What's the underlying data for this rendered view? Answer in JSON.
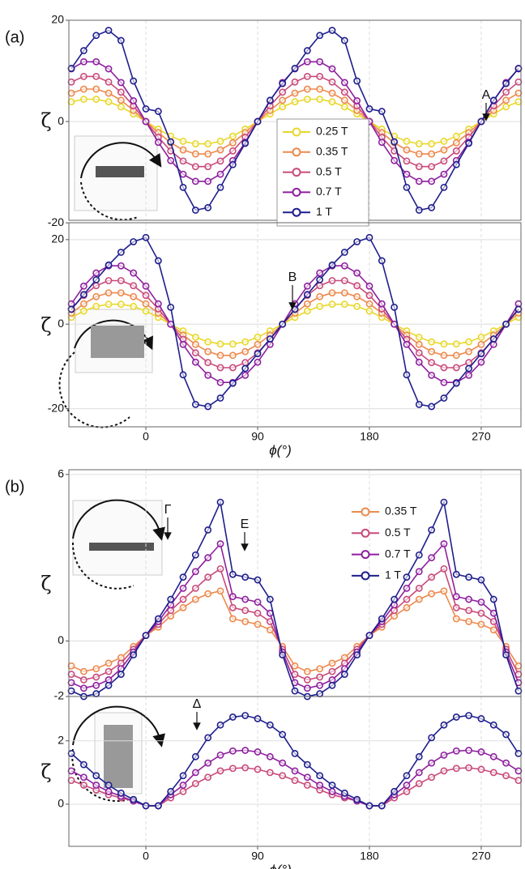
{
  "chart_data": [
    {
      "type": "line",
      "panel": "(a)",
      "y_label": "ζ",
      "annotations": [
        "A"
      ],
      "legend": "center",
      "grid": true,
      "xlim": [
        -62,
        302
      ],
      "ylim": [
        -19.5,
        20
      ],
      "xticks": [
        0,
        90,
        180,
        270
      ],
      "yticks": [
        -20,
        0,
        20
      ],
      "x": [
        -60,
        -50,
        -40,
        -30,
        -20,
        -10,
        0,
        10,
        20,
        30,
        40,
        50,
        60,
        70,
        80,
        90,
        100,
        110,
        120,
        130,
        140,
        150,
        160,
        170,
        180,
        190,
        200,
        210,
        220,
        230,
        240,
        250,
        260,
        270,
        280,
        290,
        300
      ],
      "series": [
        {
          "name": "0.25 T",
          "color": "#e8d82c",
          "values": [
            3.9,
            4.4,
            4.4,
            3.9,
            2.9,
            1.5,
            0,
            -1.5,
            -2.9,
            -3.9,
            -4.4,
            -4.4,
            -3.9,
            -2.9,
            -1.5,
            0,
            1.5,
            2.9,
            3.9,
            4.4,
            4.4,
            3.9,
            2.9,
            1.5,
            0,
            -1.5,
            -2.9,
            -3.9,
            -4.4,
            -4.4,
            -3.9,
            -2.9,
            -1.5,
            0,
            1.5,
            2.9,
            3.9
          ]
        },
        {
          "name": "0.35 T",
          "color": "#ec8a4e",
          "values": [
            5.6,
            6.4,
            6.4,
            5.6,
            4.2,
            2.2,
            0,
            -2.2,
            -4.2,
            -5.6,
            -6.4,
            -6.4,
            -5.6,
            -4.2,
            -2.2,
            0,
            2.2,
            4.2,
            5.6,
            6.4,
            6.4,
            5.6,
            4.2,
            2.2,
            0,
            -2.2,
            -4.2,
            -5.6,
            -6.4,
            -6.4,
            -5.6,
            -4.2,
            -2.2,
            0,
            2.2,
            4.2,
            5.6
          ]
        },
        {
          "name": "0.5 T",
          "color": "#c84a7a",
          "values": [
            7.8,
            8.9,
            8.9,
            7.8,
            5.8,
            3.1,
            0,
            -3.1,
            -5.8,
            -7.8,
            -8.9,
            -8.9,
            -7.8,
            -5.8,
            -3.1,
            0,
            3.1,
            5.8,
            7.8,
            8.9,
            8.9,
            7.8,
            5.8,
            3.1,
            0,
            -3.1,
            -5.8,
            -7.8,
            -8.9,
            -8.9,
            -7.8,
            -5.8,
            -3.1,
            0,
            3.1,
            5.8,
            7.8
          ]
        },
        {
          "name": "0.7 T",
          "color": "#8e1f9e",
          "values": [
            10.4,
            11.8,
            11.8,
            10.4,
            7.7,
            4.1,
            0,
            -4.1,
            -7.7,
            -10.4,
            -11.8,
            -11.8,
            -10.4,
            -7.7,
            -4.1,
            0,
            4.1,
            7.7,
            10.4,
            11.8,
            11.8,
            10.4,
            7.7,
            4.1,
            0,
            -4.1,
            -7.7,
            -10.4,
            -11.8,
            -11.8,
            -10.4,
            -7.7,
            -4.1,
            0,
            4.1,
            7.7,
            10.4
          ]
        },
        {
          "name": "1 T",
          "color": "#1e1e8c",
          "values": [
            10.5,
            14,
            17,
            18,
            16,
            8,
            2.5,
            2,
            -4,
            -13,
            -17.5,
            -17,
            -13,
            -8.5,
            -4.3,
            0,
            4.2,
            7.5,
            10.5,
            14,
            17,
            18,
            16,
            8,
            2.5,
            2,
            -4,
            -13,
            -17.5,
            -17,
            -13,
            -8.5,
            -4.3,
            0,
            4.2,
            7.5,
            10.5
          ]
        }
      ]
    },
    {
      "type": "line",
      "y_label": "ζ",
      "x_label": "ϕ(°)",
      "annotations": [
        "B"
      ],
      "grid": true,
      "xlim": [
        -62,
        302
      ],
      "ylim": [
        -24.3,
        24
      ],
      "xticks": [
        0,
        90,
        180,
        270
      ],
      "yticks": [
        -20,
        0,
        20
      ],
      "x": [
        -60,
        -50,
        -40,
        -30,
        -20,
        -10,
        0,
        10,
        20,
        30,
        40,
        50,
        60,
        70,
        80,
        90,
        100,
        110,
        120,
        130,
        140,
        150,
        160,
        170,
        180,
        190,
        200,
        210,
        220,
        230,
        240,
        250,
        260,
        270,
        280,
        290,
        300
      ],
      "series": [
        {
          "color": "#e8d82c",
          "values": [
            1.6,
            3.1,
            4.2,
            4.7,
            4.7,
            4.2,
            3.1,
            1.6,
            0,
            -1.6,
            -3.1,
            -4.2,
            -4.7,
            -4.7,
            -4.2,
            -3.1,
            -1.6,
            0,
            1.6,
            3.1,
            4.2,
            4.7,
            4.7,
            4.2,
            3.1,
            1.6,
            0,
            -1.6,
            -3.1,
            -4.2,
            -4.7,
            -4.7,
            -4.2,
            -3.1,
            -1.6,
            0,
            1.6
          ]
        },
        {
          "color": "#ec8a4e",
          "values": [
            2.6,
            4.8,
            6.5,
            7.4,
            7.4,
            6.5,
            4.8,
            2.6,
            0,
            -2.6,
            -4.8,
            -6.5,
            -7.4,
            -7.4,
            -6.5,
            -4.8,
            -2.6,
            0,
            2.6,
            4.8,
            6.5,
            7.4,
            7.4,
            6.5,
            4.8,
            2.6,
            0,
            -2.6,
            -4.8,
            -6.5,
            -7.4,
            -7.4,
            -6.5,
            -4.8,
            -2.6,
            0,
            2.6
          ]
        },
        {
          "color": "#c84a7a",
          "values": [
            3.6,
            6.8,
            9.1,
            10.3,
            10.3,
            9.1,
            6.8,
            3.6,
            0,
            -3.6,
            -6.8,
            -9.1,
            -10.3,
            -10.3,
            -9.1,
            -6.8,
            -3.6,
            0,
            3.6,
            6.8,
            9.1,
            10.3,
            10.3,
            9.1,
            6.8,
            3.6,
            0,
            -3.6,
            -6.8,
            -9.1,
            -10.3,
            -10.3,
            -9.1,
            -6.8,
            -3.6,
            0,
            3.6
          ]
        },
        {
          "color": "#8e1f9e",
          "values": [
            4.8,
            9,
            12.1,
            13.8,
            13.8,
            12.1,
            9,
            4.8,
            0,
            -4.8,
            -9,
            -12.1,
            -13.8,
            -13.8,
            -12.1,
            -9,
            -4.8,
            0,
            4.8,
            9,
            12.1,
            13.8,
            13.8,
            12.1,
            9,
            4.8,
            0,
            -4.8,
            -9,
            -12.1,
            -13.8,
            -13.8,
            -12.1,
            -9,
            -4.8,
            0,
            4.8
          ]
        },
        {
          "color": "#1e1e8c",
          "values": [
            3.5,
            7,
            10.5,
            14,
            17,
            19.5,
            20.5,
            15,
            4,
            -12,
            -19,
            -19.5,
            -17.5,
            -14,
            -10.5,
            -7,
            -3.5,
            0,
            3.5,
            7,
            10.5,
            14,
            17,
            19.5,
            20.5,
            15,
            4,
            -12,
            -19,
            -19.5,
            -17.5,
            -14,
            -10.5,
            -7,
            -3.5,
            0,
            3.5
          ]
        }
      ]
    },
    {
      "type": "line",
      "panel": "(b)",
      "y_label": "ζ",
      "annotations": [
        "Γ",
        "E"
      ],
      "legend": "upper right",
      "grid": true,
      "xlim": [
        -62,
        302
      ],
      "ylim": [
        -2,
        6.17
      ],
      "xticks": [
        0,
        90,
        180,
        270
      ],
      "yticks": [
        -2,
        0,
        6
      ],
      "x": [
        -60,
        -50,
        -40,
        -30,
        -20,
        -10,
        0,
        10,
        20,
        30,
        40,
        50,
        60,
        70,
        80,
        90,
        100,
        110,
        120,
        130,
        140,
        150,
        160,
        170,
        180,
        190,
        200,
        210,
        220,
        230,
        240,
        250,
        260,
        270,
        280,
        290,
        300
      ],
      "series": [
        {
          "name": "0.35 T",
          "color": "#ec8a4e",
          "values": [
            -0.9,
            -1.1,
            -1,
            -0.8,
            -0.6,
            -0.2,
            0.2,
            0.5,
            0.9,
            1.2,
            1.5,
            1.7,
            1.8,
            0.8,
            0.7,
            0.6,
            0.4,
            -0.2,
            -0.9,
            -1.1,
            -1,
            -0.8,
            -0.6,
            -0.2,
            0.2,
            0.5,
            0.9,
            1.2,
            1.5,
            1.7,
            1.8,
            0.8,
            0.7,
            0.6,
            0.4,
            -0.2,
            -0.9
          ]
        },
        {
          "name": "0.5 T",
          "color": "#c84a7a",
          "values": [
            -1.2,
            -1.4,
            -1.3,
            -1.1,
            -0.8,
            -0.3,
            0.2,
            0.6,
            1.1,
            1.5,
            1.9,
            2.3,
            2.6,
            1.2,
            1.1,
            1,
            0.7,
            -0.3,
            -1.2,
            -1.4,
            -1.3,
            -1.1,
            -0.8,
            -0.3,
            0.2,
            0.6,
            1.1,
            1.5,
            1.9,
            2.3,
            2.6,
            1.2,
            1.1,
            1,
            0.7,
            -0.3,
            -1.2
          ]
        },
        {
          "name": "0.7 T",
          "color": "#8e1f9e",
          "values": [
            -1.5,
            -1.7,
            -1.6,
            -1.4,
            -1,
            -0.4,
            0.2,
            0.7,
            1.3,
            1.9,
            2.5,
            3,
            3.5,
            1.6,
            1.5,
            1.4,
            1,
            -0.4,
            -1.5,
            -1.7,
            -1.6,
            -1.4,
            -1,
            -0.4,
            0.2,
            0.7,
            1.3,
            1.9,
            2.5,
            3,
            3.5,
            1.6,
            1.5,
            1.4,
            1,
            -0.4,
            -1.5
          ]
        },
        {
          "name": "1 T",
          "color": "#1e1e8c",
          "values": [
            -1.8,
            -2,
            -1.9,
            -1.6,
            -1.2,
            -0.5,
            0.2,
            0.8,
            1.5,
            2.3,
            3.1,
            4,
            5,
            2.4,
            2.3,
            2.2,
            1.5,
            -0.5,
            -1.8,
            -2,
            -1.9,
            -1.6,
            -1.2,
            -0.5,
            0.2,
            0.8,
            1.5,
            2.3,
            3.1,
            4,
            5,
            2.4,
            2.3,
            2.2,
            1.5,
            -0.5,
            -1.8
          ]
        }
      ]
    },
    {
      "type": "line",
      "y_label": "ζ",
      "x_label": "ϕ(°)",
      "annotations": [
        "Δ"
      ],
      "grid": true,
      "xlim": [
        -62,
        302
      ],
      "ylim": [
        -1.33,
        3.4
      ],
      "xticks": [
        0,
        90,
        180,
        270
      ],
      "yticks": [
        0,
        2
      ],
      "x": [
        -60,
        -50,
        -40,
        -30,
        -20,
        -10,
        0,
        10,
        20,
        30,
        40,
        50,
        60,
        70,
        80,
        90,
        100,
        110,
        120,
        130,
        140,
        150,
        160,
        170,
        180,
        190,
        200,
        210,
        220,
        230,
        240,
        250,
        260,
        270,
        280,
        290,
        300
      ],
      "series": [
        {
          "color": "#c84a7a",
          "values": [
            0.75,
            0.6,
            0.45,
            0.3,
            0.2,
            0.1,
            -0.05,
            -0.05,
            0.2,
            0.4,
            0.65,
            0.85,
            1.05,
            1.13,
            1.15,
            1.1,
            1,
            0.9,
            0.75,
            0.6,
            0.45,
            0.3,
            0.2,
            0.1,
            -0.05,
            -0.05,
            0.2,
            0.4,
            0.65,
            0.85,
            1.05,
            1.13,
            1.15,
            1.1,
            1,
            0.9,
            0.75
          ]
        },
        {
          "color": "#8e1f9e",
          "values": [
            1.05,
            0.85,
            0.6,
            0.4,
            0.25,
            0.1,
            -0.05,
            -0.05,
            0.3,
            0.6,
            1,
            1.3,
            1.55,
            1.68,
            1.7,
            1.65,
            1.5,
            1.3,
            1.05,
            0.85,
            0.6,
            0.4,
            0.25,
            0.1,
            -0.05,
            -0.05,
            0.3,
            0.6,
            1,
            1.3,
            1.55,
            1.68,
            1.7,
            1.65,
            1.5,
            1.3,
            1.05
          ]
        },
        {
          "color": "#1e1e8c",
          "values": [
            1.6,
            1.25,
            0.9,
            0.6,
            0.35,
            0.15,
            -0.05,
            -0.05,
            0.4,
            0.9,
            1.5,
            2.1,
            2.5,
            2.75,
            2.8,
            2.7,
            2.5,
            2.2,
            1.6,
            1.25,
            0.9,
            0.6,
            0.35,
            0.15,
            -0.05,
            -0.05,
            0.4,
            0.9,
            1.5,
            2.1,
            2.5,
            2.75,
            2.8,
            2.7,
            2.5,
            2.2,
            1.6
          ]
        }
      ]
    }
  ]
}
